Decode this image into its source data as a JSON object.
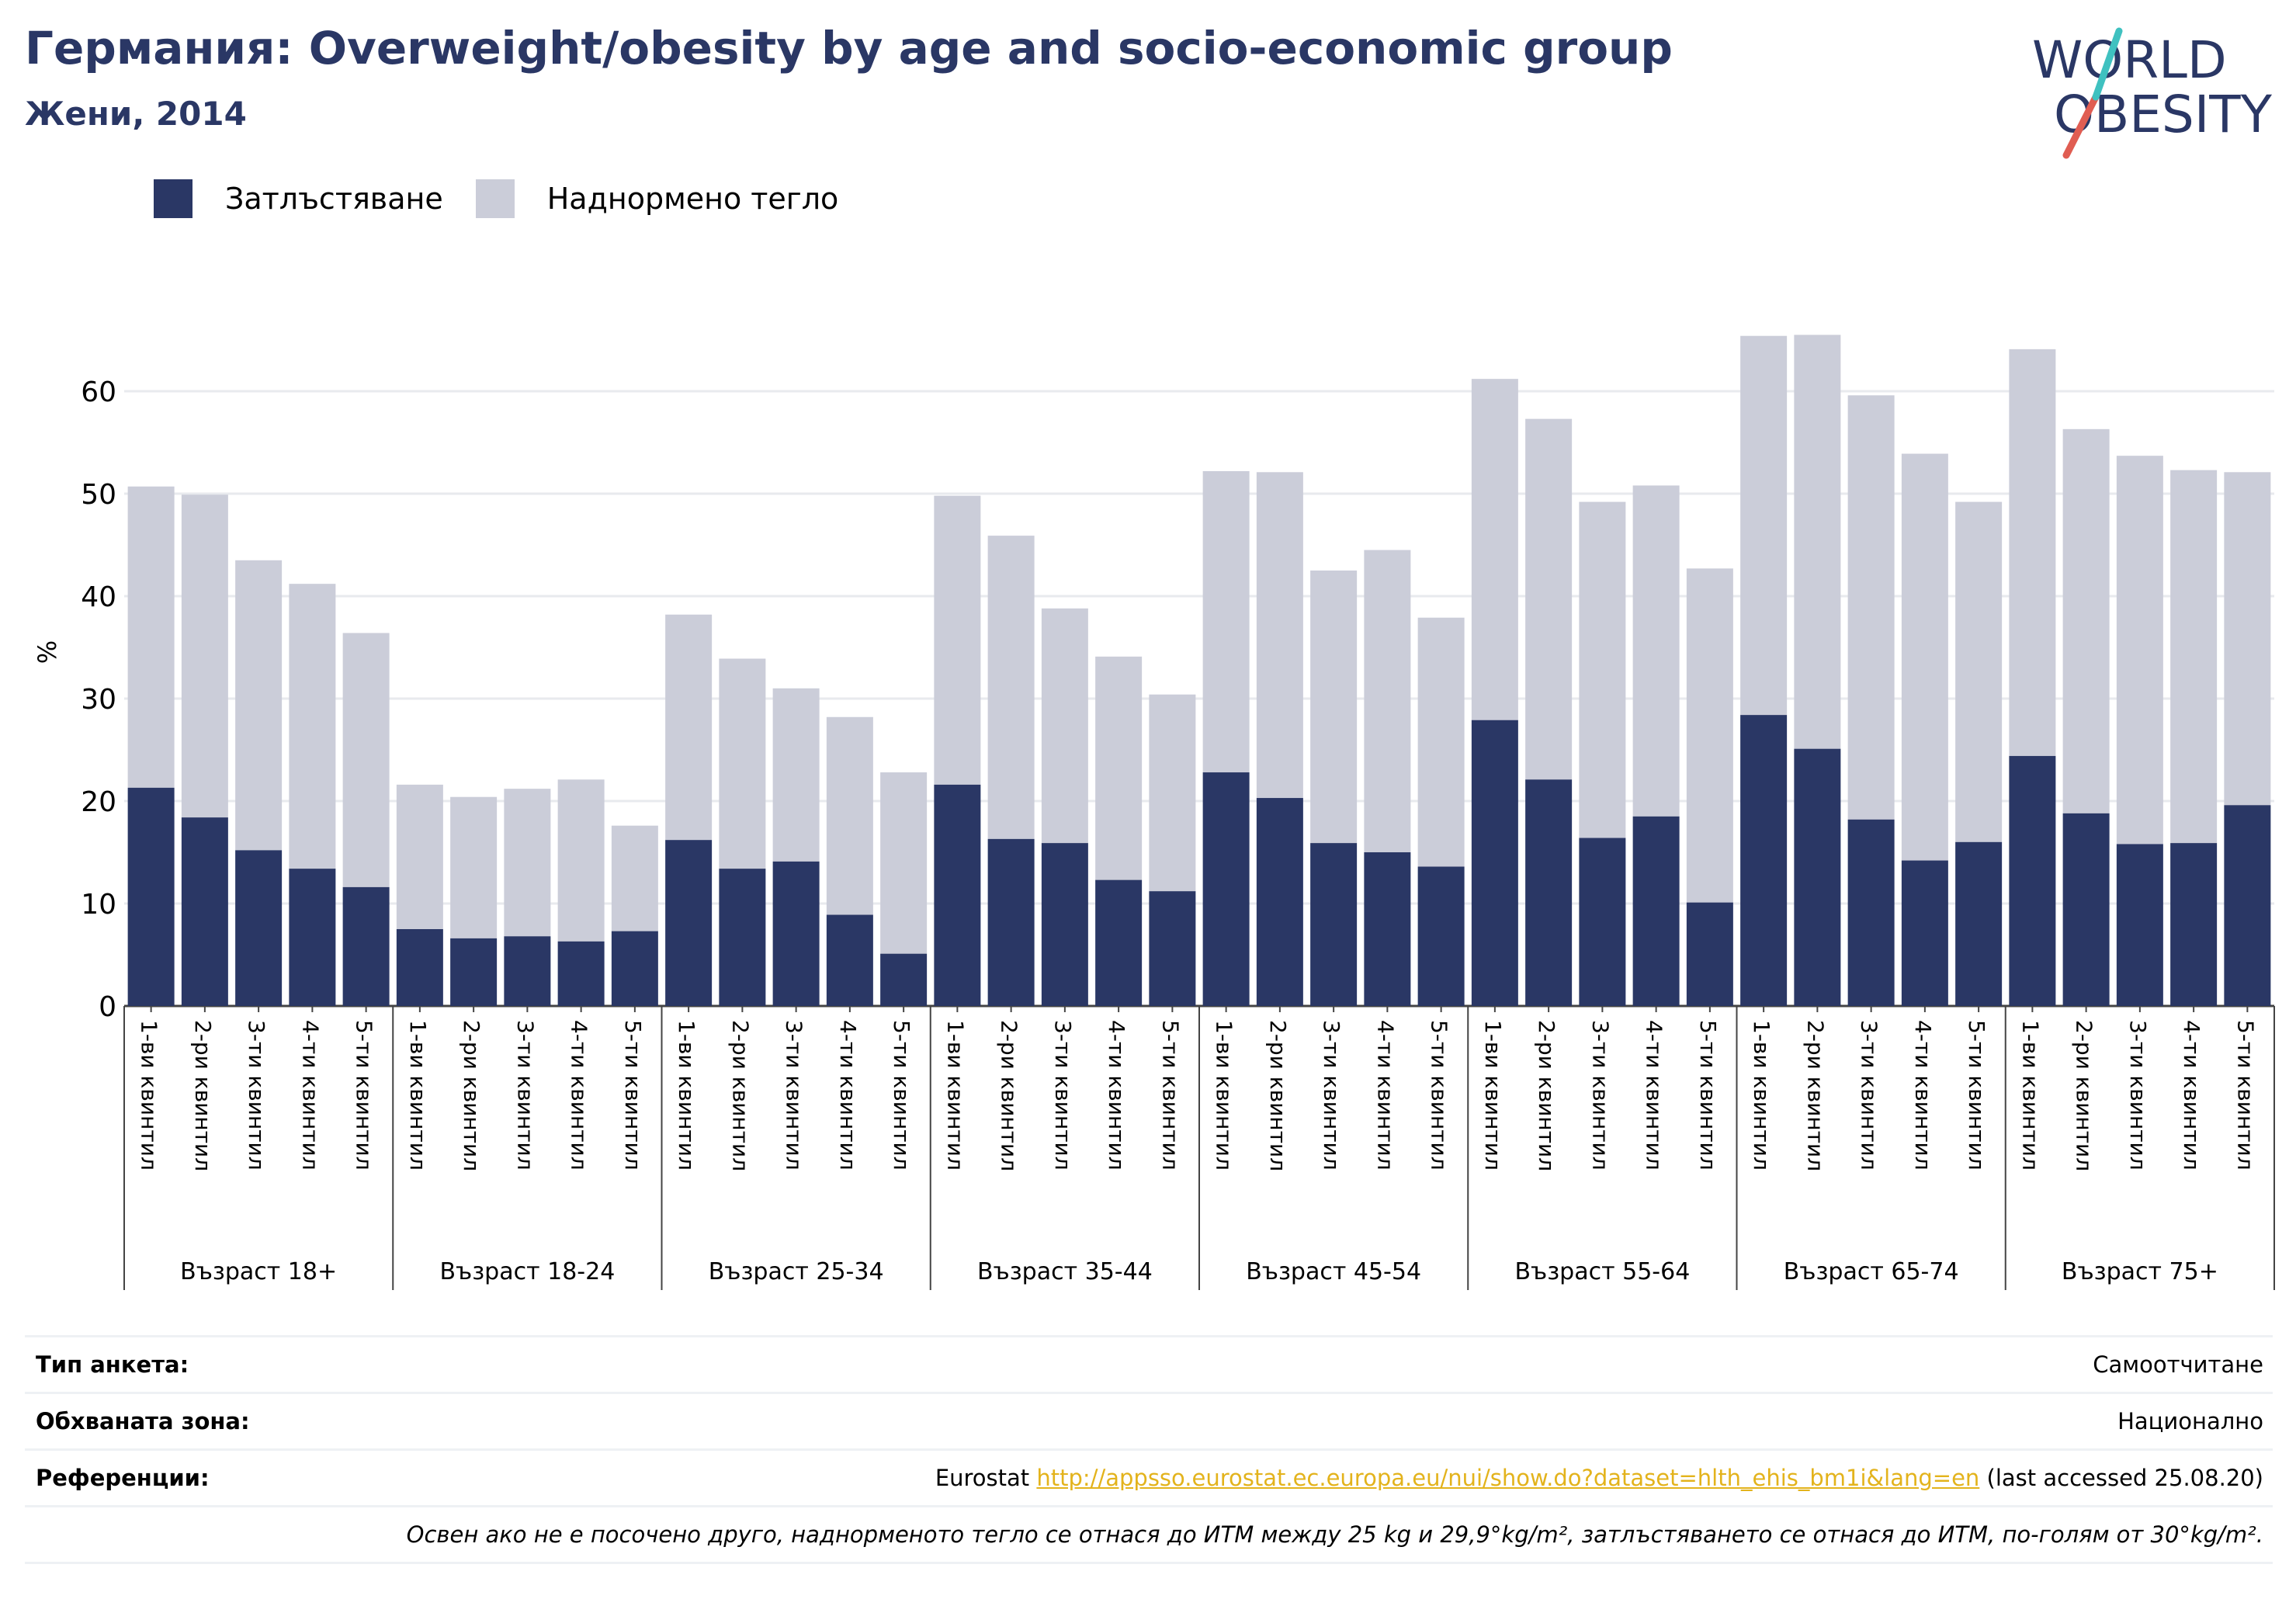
{
  "header": {
    "title": "Германия: Overweight/obesity by age and socio-economic group",
    "subtitle": "Жени, 2014"
  },
  "logo": {
    "line1": "WORLD",
    "line2": "OBESITY"
  },
  "colors": {
    "obesity": "#2a3765",
    "overweight": "#cbcdd9",
    "grid": "#e8eaee",
    "link": "#e3b31c"
  },
  "chart_data": {
    "type": "bar",
    "stacked": true,
    "ylabel": "%",
    "ylim": [
      0,
      68
    ],
    "yticks": [
      0,
      10,
      20,
      30,
      40,
      50,
      60
    ],
    "grid": true,
    "legend_position": "top-left",
    "series": [
      {
        "name": "Затлъстяване",
        "color": "#2a3765"
      },
      {
        "name": "Наднормено тегло",
        "color": "#cbcdd9"
      }
    ],
    "subcategories": [
      "1-ви квинтил",
      "2-ри квинтил",
      "3-ти квинтил",
      "4-ти квинтил",
      "5-ти квинтил"
    ],
    "groups": [
      {
        "name": "Възраст 18+",
        "obesity": [
          21.3,
          18.4,
          15.2,
          13.4,
          11.6
        ],
        "total": [
          50.7,
          49.9,
          43.5,
          41.2,
          36.4
        ]
      },
      {
        "name": "Възраст 18-24",
        "obesity": [
          7.5,
          6.6,
          6.8,
          6.3,
          7.3
        ],
        "total": [
          21.6,
          20.4,
          21.2,
          22.1,
          17.6
        ]
      },
      {
        "name": "Възраст 25-34",
        "obesity": [
          16.2,
          13.4,
          14.1,
          8.9,
          5.1
        ],
        "total": [
          38.2,
          33.9,
          31.0,
          28.2,
          22.8
        ]
      },
      {
        "name": "Възраст 35-44",
        "obesity": [
          21.6,
          16.3,
          15.9,
          12.3,
          11.2
        ],
        "total": [
          49.8,
          45.9,
          38.8,
          34.1,
          30.4
        ]
      },
      {
        "name": "Възраст 45-54",
        "obesity": [
          22.8,
          20.3,
          15.9,
          15.0,
          13.6
        ],
        "total": [
          52.2,
          52.1,
          42.5,
          44.5,
          37.9
        ]
      },
      {
        "name": "Възраст 55-64",
        "obesity": [
          27.9,
          22.1,
          16.4,
          18.5,
          10.1
        ],
        "total": [
          61.2,
          57.3,
          49.2,
          50.8,
          42.7
        ]
      },
      {
        "name": "Възраст 65-74",
        "obesity": [
          28.4,
          25.1,
          18.2,
          14.2,
          16.0
        ],
        "total": [
          65.4,
          65.5,
          59.6,
          53.9,
          49.2
        ]
      },
      {
        "name": "Възраст 75+",
        "obesity": [
          24.4,
          18.8,
          15.8,
          15.9,
          19.6
        ],
        "total": [
          64.1,
          56.3,
          53.7,
          52.3,
          52.1
        ]
      }
    ]
  },
  "info": {
    "survey_label": "Тип анкета:",
    "survey_value": "Самоотчитане",
    "area_label": "Обхваната зона:",
    "area_value": "Национално",
    "refs_label": "Референции:",
    "refs_prefix": "Eurostat ",
    "refs_link": "http://appsso.eurostat.ec.europa.eu/nui/show.do?dataset=hlth_ehis_bm1i&lang=en",
    "refs_suffix": " (last accessed 25.08.20)",
    "note": "Освен ако не е посочено друго, наднорменото тегло се отнася до ИТМ между 25 kg и 29,9°kg/m², затлъстяването се отнася до ИТМ, по-голям от 30°kg/m²."
  }
}
